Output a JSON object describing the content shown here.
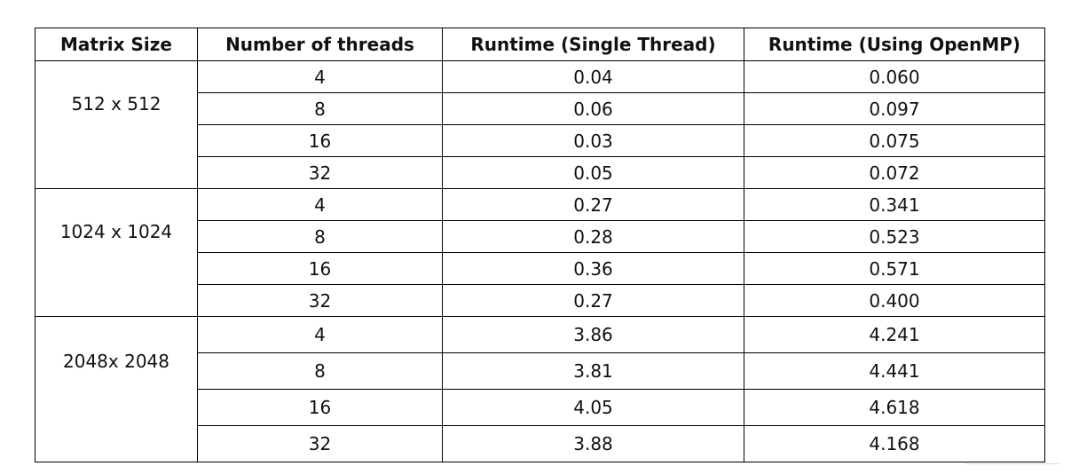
{
  "table": {
    "headers": [
      "Matrix Size",
      "Number of threads",
      "Runtime (Single Thread)",
      "Runtime (Using OpenMP)"
    ],
    "groups": [
      {
        "matrix_size": "512 x 512",
        "rows": [
          {
            "threads": "4",
            "single": "0.04",
            "openmp": "0.060"
          },
          {
            "threads": "8",
            "single": "0.06",
            "openmp": "0.097"
          },
          {
            "threads": "16",
            "single": "0.03",
            "openmp": "0.075"
          },
          {
            "threads": "32",
            "single": "0.05",
            "openmp": "0.072"
          }
        ]
      },
      {
        "matrix_size": "1024 x 1024",
        "rows": [
          {
            "threads": "4",
            "single": "0.27",
            "openmp": "0.341"
          },
          {
            "threads": "8",
            "single": "0.28",
            "openmp": "0.523"
          },
          {
            "threads": "16",
            "single": "0.36",
            "openmp": "0.571"
          },
          {
            "threads": "32",
            "single": "0.27",
            "openmp": "0.400"
          }
        ]
      },
      {
        "matrix_size": "2048x 2048",
        "rows": [
          {
            "threads": "4",
            "single": "3.86",
            "openmp": "4.241"
          },
          {
            "threads": "8",
            "single": "3.81",
            "openmp": "4.441"
          },
          {
            "threads": "16",
            "single": "4.05",
            "openmp": "4.618"
          },
          {
            "threads": "32",
            "single": "3.88",
            "openmp": "4.168"
          }
        ]
      }
    ]
  }
}
